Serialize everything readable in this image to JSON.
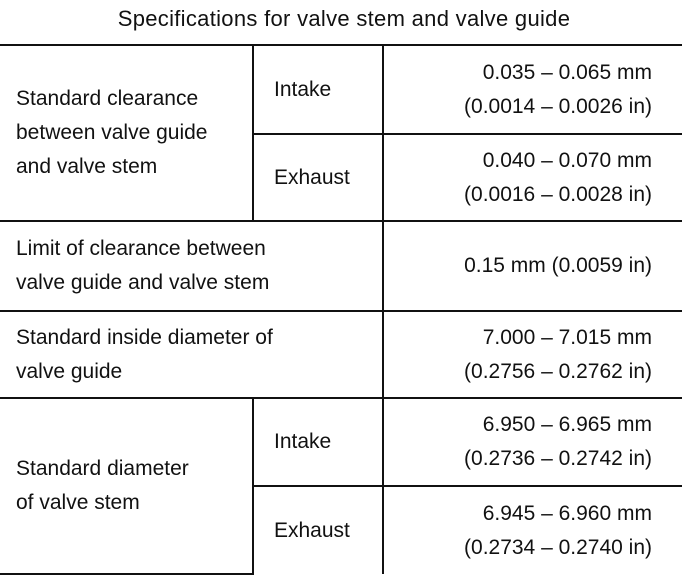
{
  "title": "Specifications for valve stem and valve guide",
  "rows": [
    {
      "description": [
        "Standard clearance",
        "between valve guide",
        "and valve stem"
      ],
      "intake": {
        "label": "Intake",
        "mm": "0.035 – 0.065 mm",
        "inch": "(0.0014 – 0.0026 in)"
      },
      "exhaust": {
        "label": "Exhaust",
        "mm": "0.040 – 0.070 mm",
        "inch": "(0.0016 – 0.0028 in)"
      }
    },
    {
      "description": [
        "Limit of clearance between",
        "valve guide and valve stem"
      ],
      "value": "0.15 mm (0.0059 in)"
    },
    {
      "description": [
        "Standard inside diameter of",
        "valve guide"
      ],
      "mm": "7.000 – 7.015 mm",
      "inch": "(0.2756 – 0.2762 in)"
    },
    {
      "description": [
        "Standard diameter",
        "of valve stem"
      ],
      "intake": {
        "label": "Intake",
        "mm": "6.950 – 6.965 mm",
        "inch": "(0.2736 – 0.2742 in)"
      },
      "exhaust": {
        "label": "Exhaust",
        "mm": "6.945 – 6.960 mm",
        "inch": "(0.2734 – 0.2740 in)"
      }
    }
  ]
}
